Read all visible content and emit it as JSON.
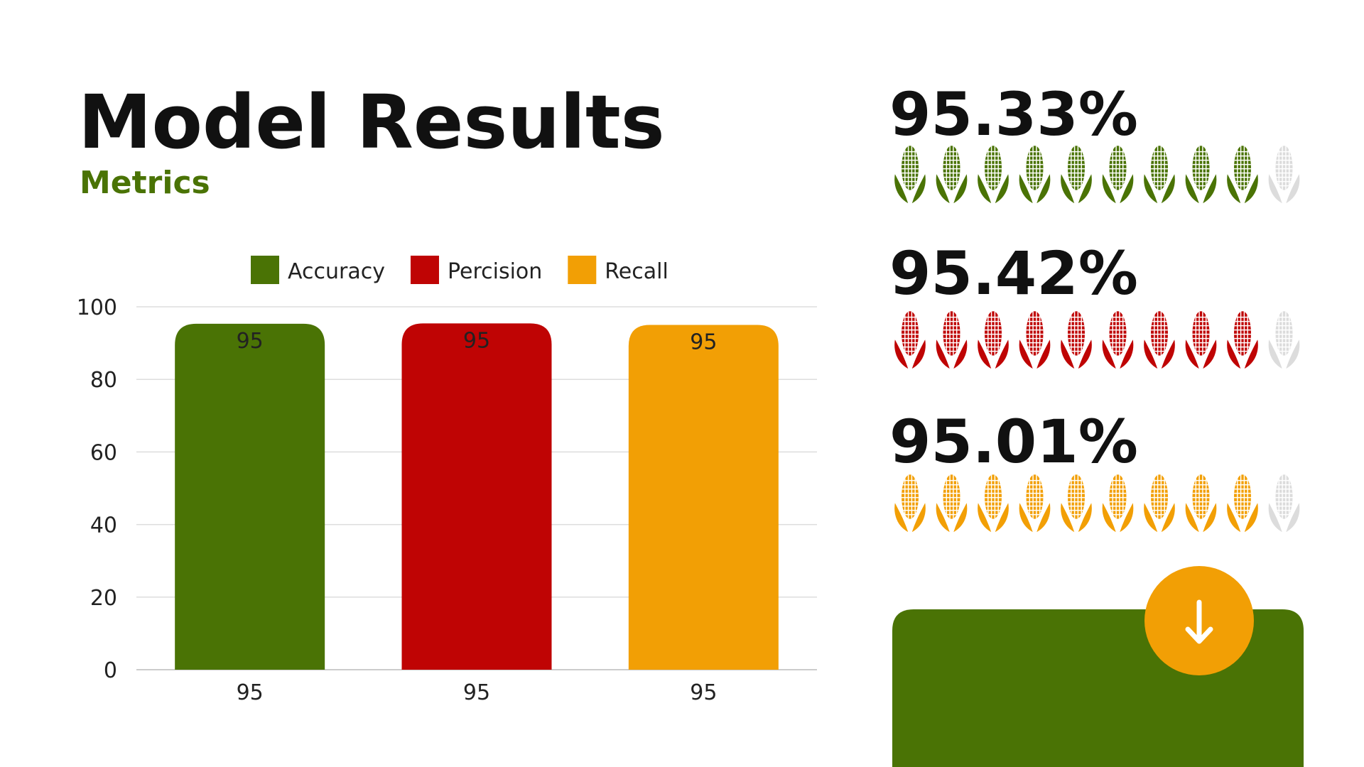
{
  "header": {
    "title": "Model Results",
    "subtitle": "Metrics"
  },
  "chart_data": {
    "type": "bar",
    "categories": [
      "95",
      "95",
      "95"
    ],
    "series": [
      {
        "name": "Accuracy",
        "color": "#4a7305",
        "label_color": "#ffffff",
        "values": [
          95.33,
          null,
          null
        ],
        "value_labels": [
          "95",
          null,
          null
        ]
      },
      {
        "name": "Percision",
        "color": "#bf0404",
        "label_color": "#ffffff",
        "values": [
          null,
          95.42,
          null
        ],
        "value_labels": [
          null,
          "95",
          null
        ]
      },
      {
        "name": "Recall",
        "color": "#f29f05",
        "label_color": "#222222",
        "values": [
          null,
          null,
          95.01
        ],
        "value_labels": [
          null,
          null,
          "95"
        ]
      }
    ],
    "ylim": [
      0,
      100
    ],
    "yticks": [
      0,
      20,
      40,
      60,
      80,
      100
    ],
    "grid": true,
    "legend": "top"
  },
  "pictograms": [
    {
      "label": "95.33%",
      "filled": 9,
      "total": 10,
      "color": "#4a7305",
      "empty_color": "#dcdcdc"
    },
    {
      "label": "95.42%",
      "filled": 9,
      "total": 10,
      "color": "#bf0404",
      "empty_color": "#dcdcdc"
    },
    {
      "label": "95.01%",
      "filled": 9,
      "total": 10,
      "color": "#f29f05",
      "empty_color": "#dcdcdc"
    }
  ]
}
